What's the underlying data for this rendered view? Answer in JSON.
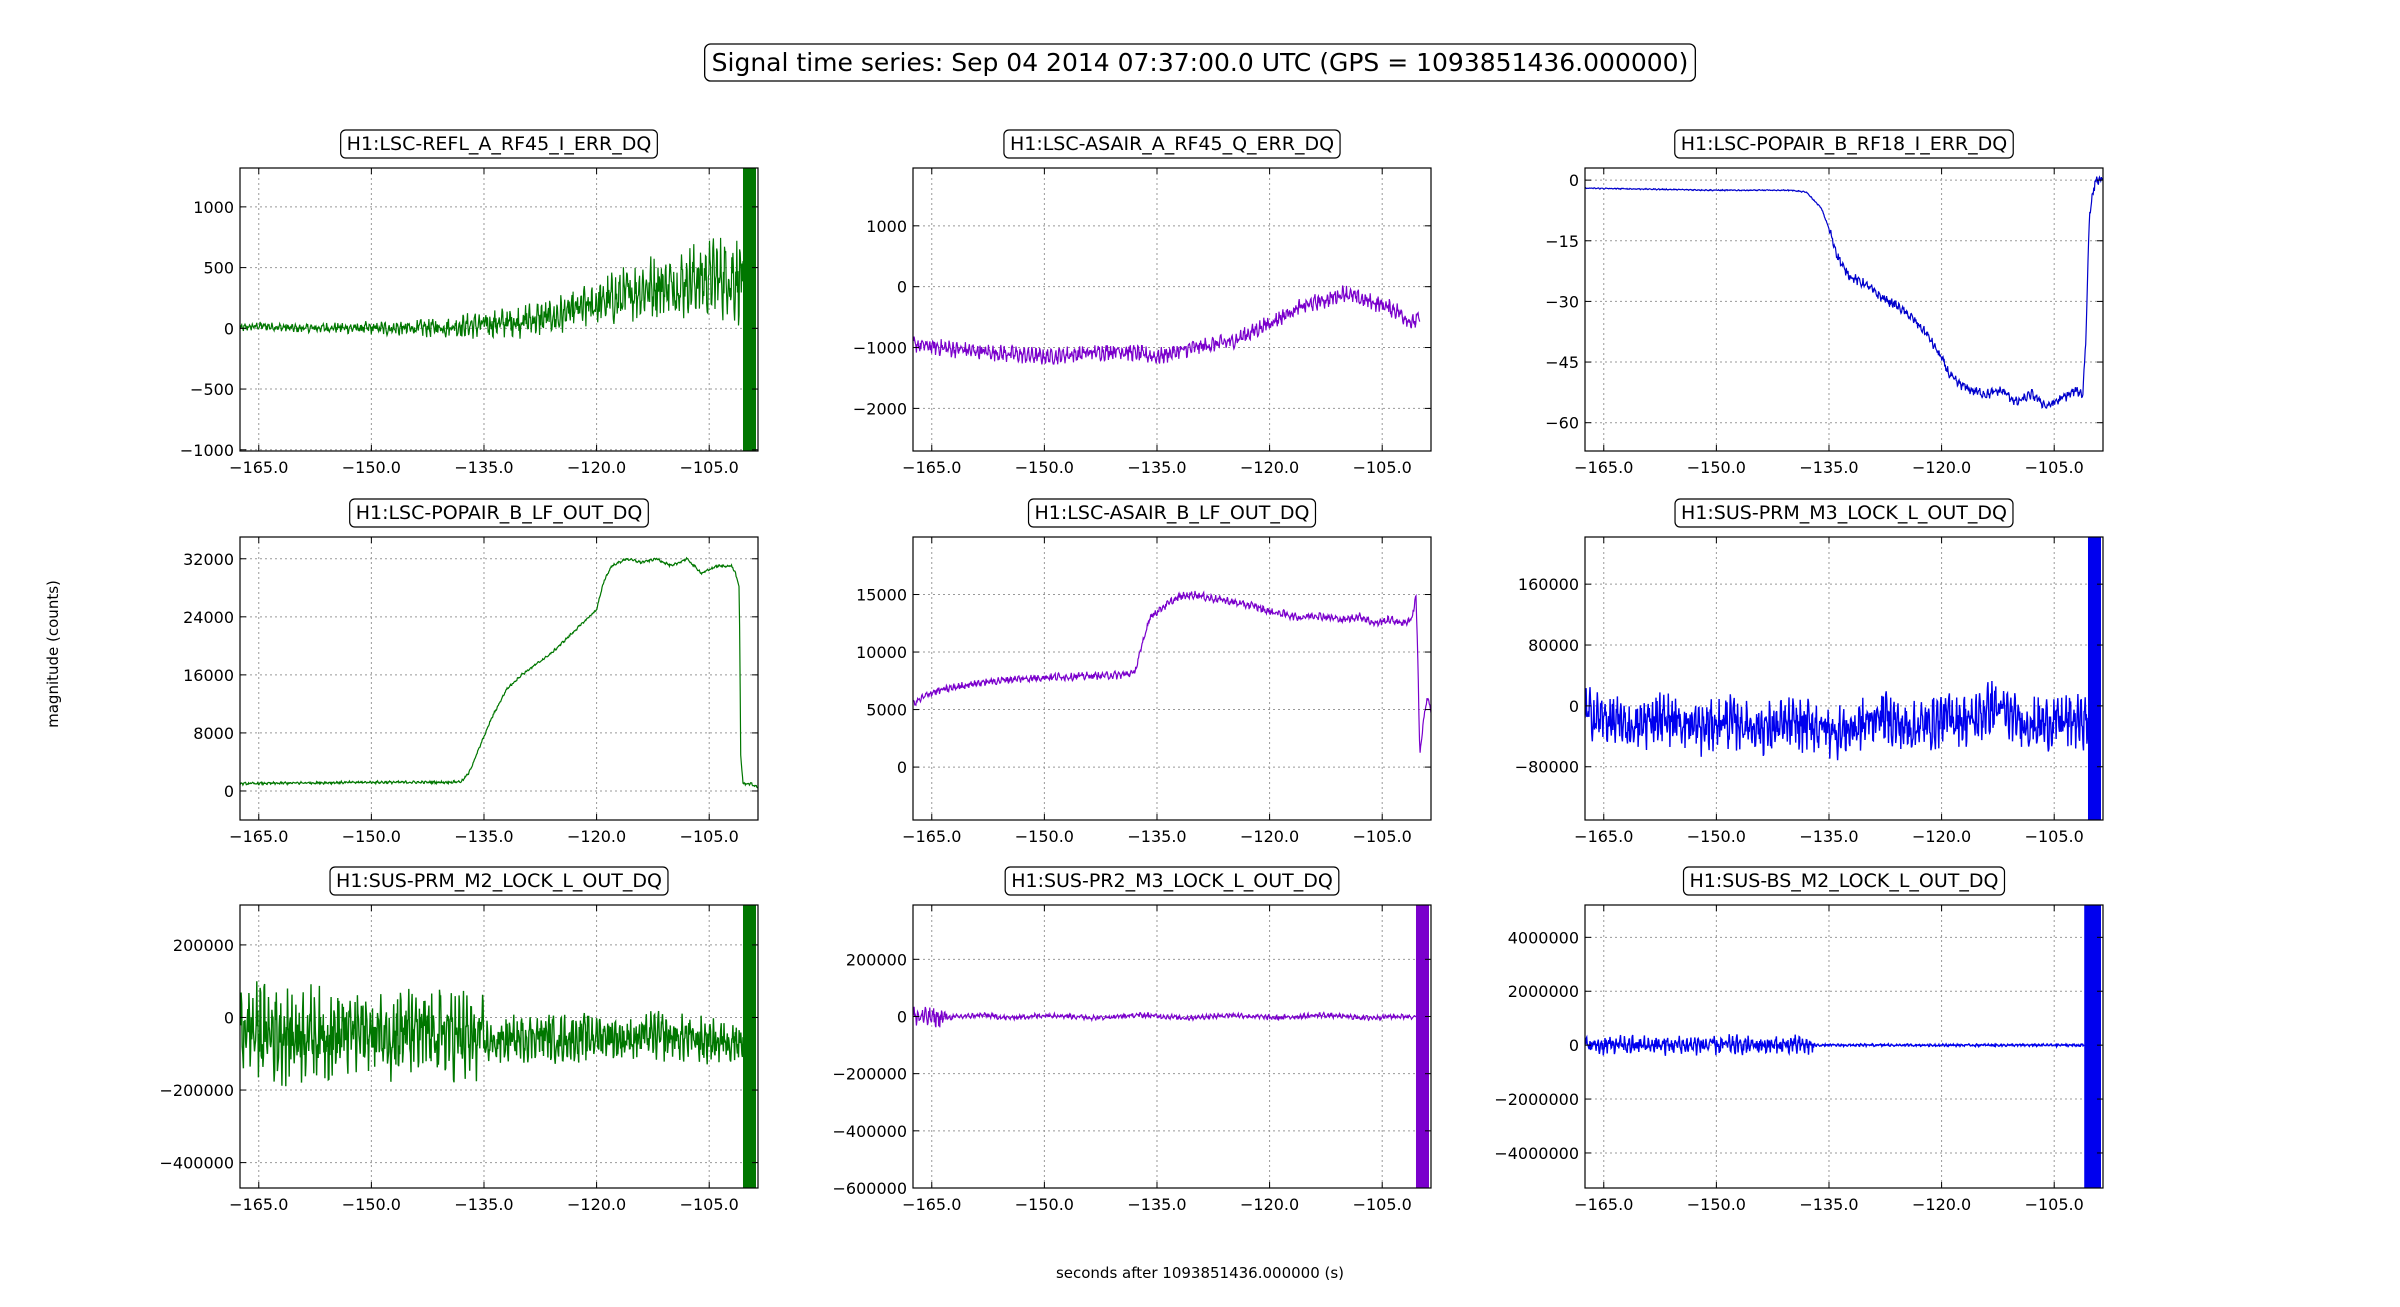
{
  "figure": {
    "title": "Signal time series: Sep 04 2014 07:37:00.0 UTC (GPS = 1093851436.000000)",
    "xlabel": "seconds after 1093851436.000000 (s)",
    "ylabel": "magnitude (counts)"
  },
  "chart_data": [
    {
      "type": "line",
      "title": "H1:LSC-REFL_A_RF45_I_ERR_DQ",
      "color": "#007700",
      "xlim": [
        -167.5,
        -98.5
      ],
      "xticks": [
        -165,
        -150,
        -135,
        -120,
        -105
      ],
      "xtick_labels": [
        "−165.0",
        "−150.0",
        "−135.0",
        "−120.0",
        "−105.0"
      ],
      "ylim": [
        -1010,
        1320
      ],
      "yticks": [
        -1000,
        -500,
        0,
        500,
        1000
      ],
      "ytick_labels": [
        "−1000",
        "−500",
        "0",
        "500",
        "1000"
      ],
      "grid": true,
      "series": [
        {
          "x": [
            -167.5,
            -165,
            -160,
            -155,
            -150,
            -145,
            -140,
            -135,
            -130,
            -125,
            -120,
            -117,
            -115,
            -112,
            -110,
            -108,
            -106,
            -104,
            -102,
            -100.5
          ],
          "y": [
            0,
            20,
            0,
            5,
            0,
            0,
            10,
            30,
            60,
            100,
            200,
            250,
            300,
            350,
            350,
            380,
            400,
            420,
            420,
            400
          ]
        }
      ],
      "burst_start": -100.5,
      "burst_range": [
        -1010,
        1320
      ]
    },
    {
      "type": "line",
      "title": "H1:LSC-ASAIR_A_RF45_Q_ERR_DQ",
      "color": "#7a00cc",
      "xlim": [
        -167.5,
        -98.5
      ],
      "xticks": [
        -165,
        -150,
        -135,
        -120,
        -105
      ],
      "xtick_labels": [
        "−165.0",
        "−150.0",
        "−135.0",
        "−120.0",
        "−105.0"
      ],
      "ylim": [
        -2700,
        1950
      ],
      "yticks": [
        -2000,
        -1000,
        0,
        1000
      ],
      "ytick_labels": [
        "−2000",
        "−1000",
        "0",
        "1000"
      ],
      "grid": true,
      "series": [
        {
          "x": [
            -167.5,
            -160,
            -155,
            -150,
            -145,
            -140,
            -135,
            -130,
            -125,
            -120,
            -117,
            -115,
            -112,
            -110,
            -108,
            -105,
            -103,
            -101,
            -100
          ],
          "y": [
            -950,
            -1050,
            -1100,
            -1150,
            -1100,
            -1050,
            -1150,
            -1000,
            -900,
            -600,
            -400,
            -300,
            -200,
            -100,
            -200,
            -300,
            -400,
            -600,
            -500
          ]
        }
      ]
    },
    {
      "type": "line",
      "title": "H1:LSC-POPAIR_B_RF18_I_ERR_DQ",
      "color": "#0000cc",
      "xlim": [
        -167.5,
        -98.5
      ],
      "xticks": [
        -165,
        -150,
        -135,
        -120,
        -105
      ],
      "xtick_labels": [
        "−165.0",
        "−150.0",
        "−135.0",
        "−120.0",
        "−105.0"
      ],
      "ylim": [
        -67,
        3
      ],
      "yticks": [
        -60,
        -45,
        -30,
        -15,
        0
      ],
      "ytick_labels": [
        "−60",
        "−45",
        "−30",
        "−15",
        "0"
      ],
      "grid": true,
      "series": [
        {
          "x": [
            -167.5,
            -160,
            -150,
            -140,
            -138,
            -136,
            -135,
            -134,
            -133,
            -132,
            -130,
            -128,
            -126,
            -124,
            -122,
            -120,
            -119,
            -118,
            -116,
            -114,
            -112,
            -110,
            -108,
            -106,
            -104,
            -102,
            -101.2,
            -100.8,
            -100.3,
            -99.5,
            -98.5
          ],
          "y": [
            -2,
            -2.2,
            -2.5,
            -2.5,
            -3,
            -7,
            -12,
            -18,
            -22,
            -24,
            -26,
            -29,
            -31,
            -34,
            -38,
            -44,
            -48,
            -50,
            -52,
            -53,
            -52,
            -55,
            -53,
            -56,
            -54,
            -52,
            -53,
            -40,
            -8,
            0,
            0
          ]
        }
      ]
    },
    {
      "type": "line",
      "title": "H1:LSC-POPAIR_B_LF_OUT_DQ",
      "color": "#007700",
      "xlim": [
        -167.5,
        -98.5
      ],
      "xticks": [
        -165,
        -150,
        -135,
        -120,
        -105
      ],
      "xtick_labels": [
        "−165.0",
        "−150.0",
        "−135.0",
        "−120.0",
        "−105.0"
      ],
      "ylim": [
        -4000,
        35000
      ],
      "yticks": [
        0,
        8000,
        16000,
        24000,
        32000
      ],
      "ytick_labels": [
        "0",
        "8000",
        "16000",
        "24000",
        "32000"
      ],
      "grid": true,
      "series": [
        {
          "x": [
            -167.5,
            -160,
            -150,
            -140,
            -138,
            -137,
            -136,
            -135,
            -134,
            -133,
            -132,
            -130,
            -128,
            -126,
            -124,
            -122,
            -120,
            -119,
            -118,
            -116,
            -114,
            -112,
            -110,
            -108,
            -106,
            -104,
            -102,
            -101.5,
            -101,
            -100.8,
            -100.5,
            -99.5,
            -98.5
          ],
          "y": [
            1000,
            1100,
            1200,
            1200,
            1300,
            2500,
            5000,
            7500,
            10000,
            12000,
            14000,
            16000,
            17500,
            19000,
            21000,
            23000,
            25000,
            29000,
            31000,
            32000,
            31500,
            32000,
            31000,
            32000,
            30000,
            31000,
            31000,
            30000,
            28000,
            5000,
            1000,
            1000,
            500
          ]
        }
      ]
    },
    {
      "type": "line",
      "title": "H1:LSC-ASAIR_B_LF_OUT_DQ",
      "color": "#7a00cc",
      "xlim": [
        -167.5,
        -98.5
      ],
      "xticks": [
        -165,
        -150,
        -135,
        -120,
        -105
      ],
      "xtick_labels": [
        "−165.0",
        "−150.0",
        "−135.0",
        "−120.0",
        "−105.0"
      ],
      "ylim": [
        -4600,
        20000
      ],
      "yticks": [
        0,
        5000,
        10000,
        15000
      ],
      "ytick_labels": [
        "0",
        "5000",
        "10000",
        "15000"
      ],
      "grid": true,
      "series": [
        {
          "x": [
            -167.5,
            -165,
            -160,
            -155,
            -150,
            -145,
            -140,
            -138,
            -137,
            -136,
            -134,
            -132,
            -130,
            -128,
            -126,
            -124,
            -122,
            -120,
            -118,
            -116,
            -114,
            -112,
            -110,
            -108,
            -106,
            -104,
            -102,
            -101,
            -100.5,
            -100.2,
            -100,
            -99.5,
            -99,
            -98.5
          ],
          "y": [
            5500,
            6500,
            7200,
            7600,
            7800,
            7900,
            8000,
            8200,
            10500,
            13000,
            14000,
            14800,
            15000,
            14700,
            14500,
            14200,
            14000,
            13500,
            13300,
            13000,
            13200,
            13000,
            12800,
            13100,
            12500,
            12800,
            12500,
            13000,
            15000,
            8000,
            1000,
            4000,
            6000,
            5000
          ]
        }
      ]
    },
    {
      "type": "line",
      "title": "H1:SUS-PRM_M3_LOCK_L_OUT_DQ",
      "color": "#0000ee",
      "xlim": [
        -167.5,
        -98.5
      ],
      "xticks": [
        -165,
        -150,
        -135,
        -120,
        -105
      ],
      "xtick_labels": [
        "−165.0",
        "−150.0",
        "−135.0",
        "−120.0",
        "−105.0"
      ],
      "ylim": [
        -150000,
        222000
      ],
      "yticks": [
        -80000,
        0,
        80000,
        160000
      ],
      "ytick_labels": [
        "−80000",
        "0",
        "80000",
        "160000"
      ],
      "grid": true,
      "series": [
        {
          "x": [
            -167.5,
            -164,
            -161,
            -158,
            -155,
            -152,
            -149,
            -146,
            -143,
            -140,
            -137,
            -134,
            -131,
            -128,
            -125,
            -122,
            -119,
            -116,
            -113,
            -110,
            -107,
            -104,
            -101.5
          ],
          "y": [
            -10000,
            -20000,
            -30000,
            -15000,
            -20000,
            -30000,
            -20000,
            -25000,
            -30000,
            -25000,
            -25000,
            -35000,
            -28000,
            -10000,
            -30000,
            -25000,
            -15000,
            -20000,
            0,
            -20000,
            -25000,
            -20000,
            -20000
          ]
        }
      ],
      "burst_start": -100.5,
      "burst_range": [
        -150000,
        222000
      ]
    },
    {
      "type": "line",
      "title": "H1:SUS-PRM_M2_LOCK_L_OUT_DQ",
      "color": "#007700",
      "xlim": [
        -167.5,
        -98.5
      ],
      "xticks": [
        -165,
        -150,
        -135,
        -120,
        -105
      ],
      "xtick_labels": [
        "−165.0",
        "−150.0",
        "−135.0",
        "−120.0",
        "−105.0"
      ],
      "ylim": [
        -470000,
        310000
      ],
      "yticks": [
        -400000,
        -200000,
        0,
        200000
      ],
      "ytick_labels": [
        "−400000",
        "−200000",
        "0",
        "200000"
      ],
      "grid": true,
      "series": [
        {
          "x": [
            -167.5,
            -164,
            -161,
            -158,
            -155,
            -152,
            -149,
            -146,
            -143,
            -140,
            -137,
            -134,
            -131,
            -128,
            -125,
            -122,
            -119,
            -116,
            -113,
            -110,
            -107,
            -104,
            -101.5
          ],
          "y": [
            -30000,
            -40000,
            -50000,
            -40000,
            -50000,
            -40000,
            -45000,
            -40000,
            -50000,
            -45000,
            -60000,
            -70000,
            -60000,
            -50000,
            -60000,
            -55000,
            -50000,
            -60000,
            -50000,
            -55000,
            -60000,
            -65000,
            -60000
          ]
        }
      ],
      "burst_start": -100.5,
      "burst_range": [
        -470000,
        310000
      ]
    },
    {
      "type": "line",
      "title": "H1:SUS-PR2_M3_LOCK_L_OUT_DQ",
      "color": "#7a00cc",
      "xlim": [
        -167.5,
        -98.5
      ],
      "xticks": [
        -165,
        -150,
        -135,
        -120,
        -105
      ],
      "xtick_labels": [
        "−165.0",
        "−150.0",
        "−135.0",
        "−120.0",
        "−105.0"
      ],
      "ylim": [
        -600000,
        390000
      ],
      "yticks": [
        -600000,
        -400000,
        -200000,
        0,
        200000
      ],
      "ytick_labels": [
        "−600000",
        "−400000",
        "−200000",
        "0",
        "200000"
      ],
      "grid": true,
      "series": [
        {
          "x": [
            -167.5,
            -164,
            -161,
            -158,
            -155,
            -152,
            -149,
            -146,
            -143,
            -140,
            -137,
            -134,
            -131,
            -128,
            -125,
            -122,
            -119,
            -116,
            -113,
            -110,
            -107,
            -104,
            -101.5
          ],
          "y": [
            0,
            -5000,
            0,
            5000,
            -5000,
            0,
            5000,
            0,
            -5000,
            0,
            5000,
            0,
            -5000,
            0,
            5000,
            0,
            -5000,
            0,
            5000,
            0,
            -5000,
            0,
            0
          ]
        }
      ],
      "burst_start": -100.5,
      "burst_range": [
        -600000,
        390000
      ]
    },
    {
      "type": "line",
      "title": "H1:SUS-BS_M2_LOCK_L_OUT_DQ",
      "color": "#0000ee",
      "xlim": [
        -167.5,
        -98.5
      ],
      "xticks": [
        -165,
        -150,
        -135,
        -120,
        -105
      ],
      "xtick_labels": [
        "−165.0",
        "−150.0",
        "−135.0",
        "−120.0",
        "−105.0"
      ],
      "ylim": [
        -5300000,
        5200000
      ],
      "yticks": [
        -4000000,
        -2000000,
        0,
        2000000,
        4000000
      ],
      "ytick_labels": [
        "−4000000",
        "−2000000",
        "0",
        "2000000",
        "4000000"
      ],
      "grid": true,
      "series": [
        {
          "x": [
            -167.5,
            -160,
            -150,
            -140,
            -137,
            -134,
            -130,
            -120,
            -110,
            -101.5
          ],
          "y": [
            0,
            0,
            0,
            0,
            0,
            0,
            0,
            0,
            0,
            0
          ]
        }
      ],
      "burst_start": -101,
      "burst_range": [
        -5300000,
        5200000
      ]
    }
  ]
}
